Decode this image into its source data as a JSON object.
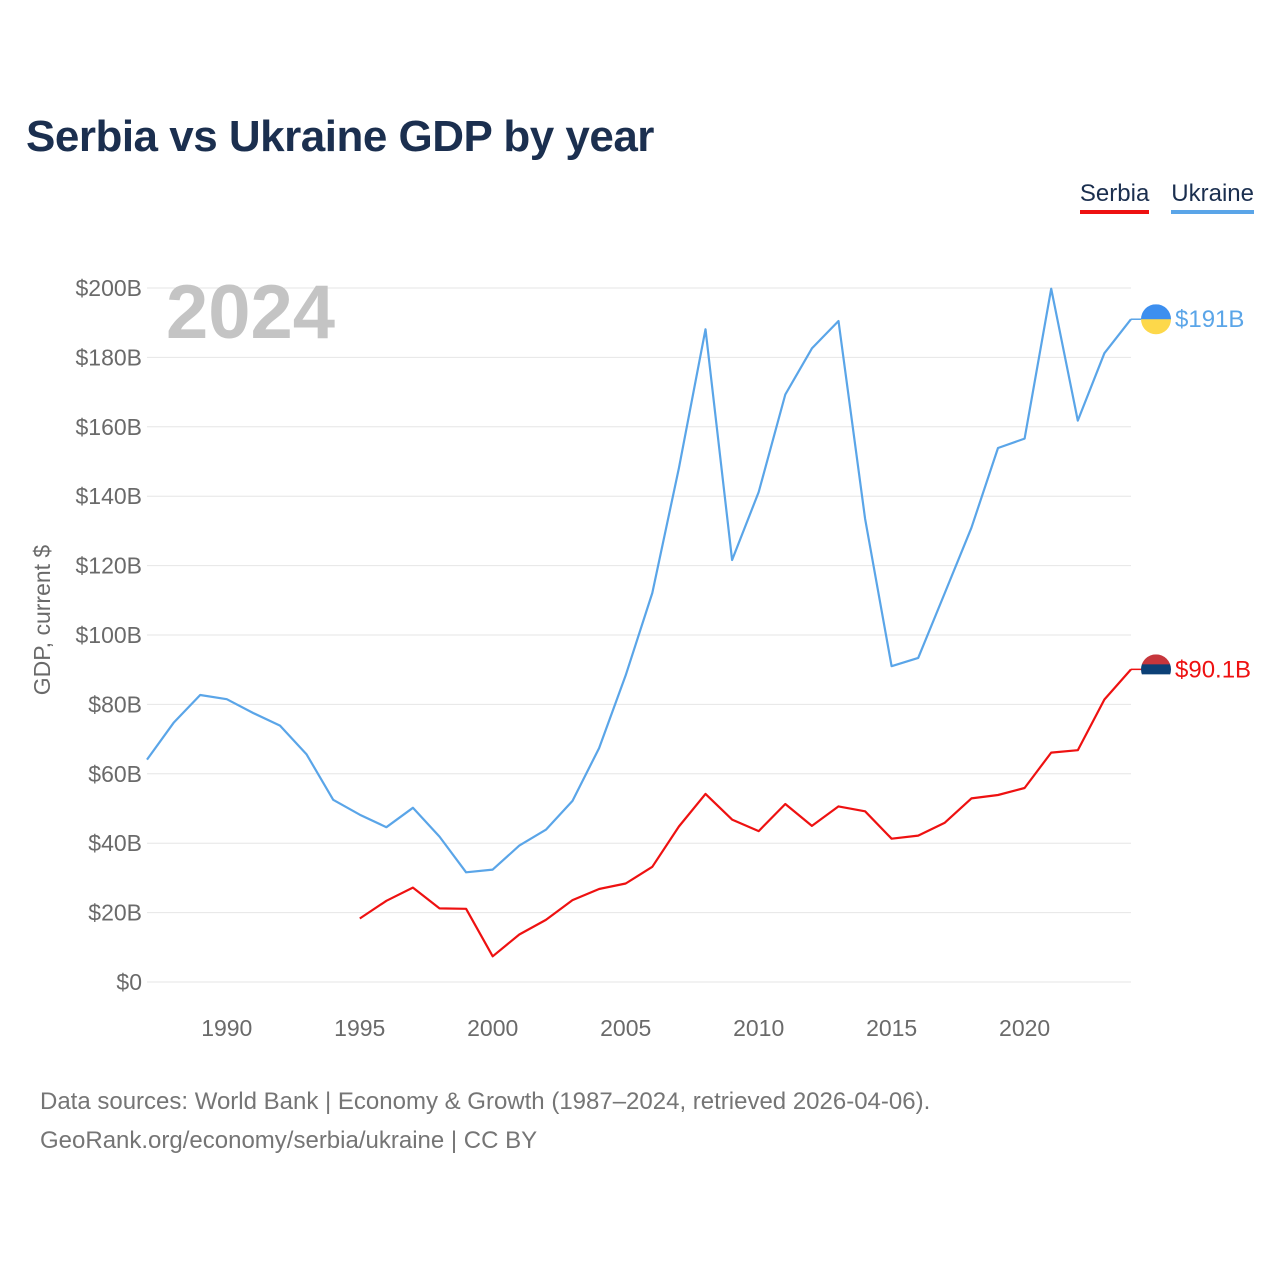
{
  "title": "Serbia vs Ukraine GDP by year",
  "legend": [
    {
      "label": "Serbia",
      "color": "#ee1111"
    },
    {
      "label": "Ukraine",
      "color": "#5aa5e8"
    }
  ],
  "footer": {
    "line1": "Data sources: World Bank | Economy & Growth (1987–2024, retrieved 2026-04-06).",
    "line2": "GeoRank.org/economy/serbia/ukraine | CC BY"
  },
  "chart_data": {
    "type": "line",
    "title": "Serbia vs Ukraine GDP by year",
    "xlabel": "",
    "ylabel": "GDP, current $",
    "current_year": "2024",
    "xlim": [
      1987,
      2024
    ],
    "ylim": [
      0,
      200
    ],
    "y_unit": "B USD",
    "xticks": [
      1990,
      1995,
      2000,
      2005,
      2010,
      2015,
      2020
    ],
    "yticks": [
      0,
      20,
      40,
      60,
      80,
      100,
      120,
      140,
      160,
      180,
      200
    ],
    "ytick_labels": [
      "$0",
      "$20B",
      "$40B",
      "$60B",
      "$80B",
      "$100B",
      "$120B",
      "$140B",
      "$160B",
      "$180B",
      "$200B"
    ],
    "grid": true,
    "legend_position": "top-right",
    "series": [
      {
        "name": "Ukraine",
        "color": "#5aa5e8",
        "flag_colors": [
          "#3d8fef",
          "#fdd84a"
        ],
        "end_label": "$191B",
        "x": [
          1987,
          1988,
          1989,
          1990,
          1991,
          1992,
          1993,
          1994,
          1995,
          1996,
          1997,
          1998,
          1999,
          2000,
          2001,
          2002,
          2003,
          2004,
          2005,
          2006,
          2007,
          2008,
          2009,
          2010,
          2011,
          2012,
          2013,
          2014,
          2015,
          2016,
          2017,
          2018,
          2019,
          2020,
          2021,
          2022,
          2023,
          2024
        ],
        "values": [
          64.1,
          74.7,
          82.7,
          81.5,
          77.5,
          73.9,
          65.6,
          52.5,
          48.2,
          44.6,
          50.2,
          41.9,
          31.6,
          32.4,
          39.3,
          43.9,
          52.2,
          67.4,
          88.4,
          112.1,
          148.1,
          188.1,
          121.6,
          141.2,
          169.3,
          182.6,
          190.5,
          133.5,
          91.0,
          93.4,
          112.1,
          130.9,
          153.9,
          156.6,
          199.8,
          161.8,
          181.2,
          191.0
        ]
      },
      {
        "name": "Serbia",
        "color": "#ee1111",
        "flag_colors": [
          "#c6363c",
          "#0c4076",
          "#ffffff"
        ],
        "end_label": "$90.1B",
        "x": [
          1995,
          1996,
          1997,
          1998,
          1999,
          2000,
          2001,
          2002,
          2003,
          2004,
          2005,
          2006,
          2007,
          2008,
          2009,
          2010,
          2011,
          2012,
          2013,
          2014,
          2015,
          2016,
          2017,
          2018,
          2019,
          2020,
          2021,
          2022,
          2023,
          2024
        ],
        "values": [
          18.3,
          23.4,
          27.2,
          21.2,
          21.1,
          7.4,
          13.7,
          17.9,
          23.6,
          26.8,
          28.4,
          33.2,
          44.8,
          54.2,
          46.8,
          43.5,
          51.3,
          45.0,
          50.6,
          49.2,
          41.3,
          42.2,
          45.9,
          52.9,
          53.9,
          55.9,
          66.1,
          66.8,
          81.4,
          90.1
        ]
      }
    ]
  }
}
